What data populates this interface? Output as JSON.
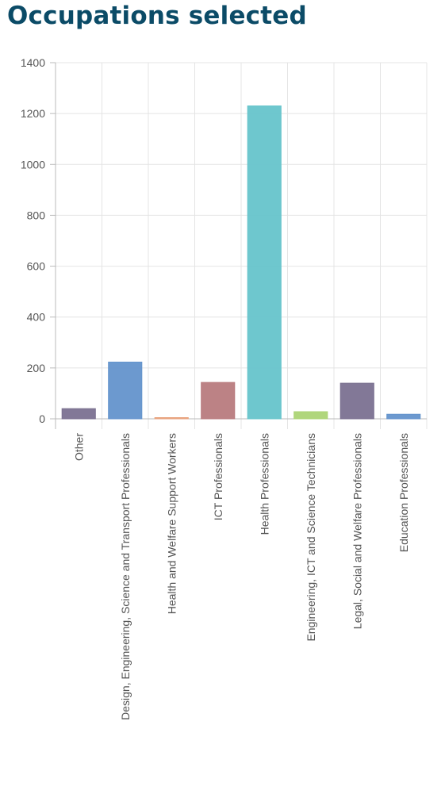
{
  "page": {
    "title": "Occupations selected"
  },
  "chart_data": {
    "type": "bar",
    "categories": [
      "Other",
      "Design, Engineering, Science and Transport Professionals",
      "Health and Welfare Support Workers",
      "ICT Professionals",
      "Health Professionals",
      "Engineering, ICT and Science Technicians",
      "Legal, Social and Welfare Professionals",
      "Education Professionals"
    ],
    "values": [
      40,
      223,
      3,
      143,
      1230,
      28,
      140,
      18
    ],
    "colors": [
      "#7b7191",
      "#6494cc",
      "#e8a27c",
      "#b87b7e",
      "#66c4cb",
      "#acd475",
      "#7b7191",
      "#6494cc"
    ],
    "ylim": [
      0,
      1400
    ],
    "yticks": [
      0,
      200,
      400,
      600,
      800,
      1000,
      1200,
      1400
    ],
    "grid": true,
    "legend": "none"
  }
}
